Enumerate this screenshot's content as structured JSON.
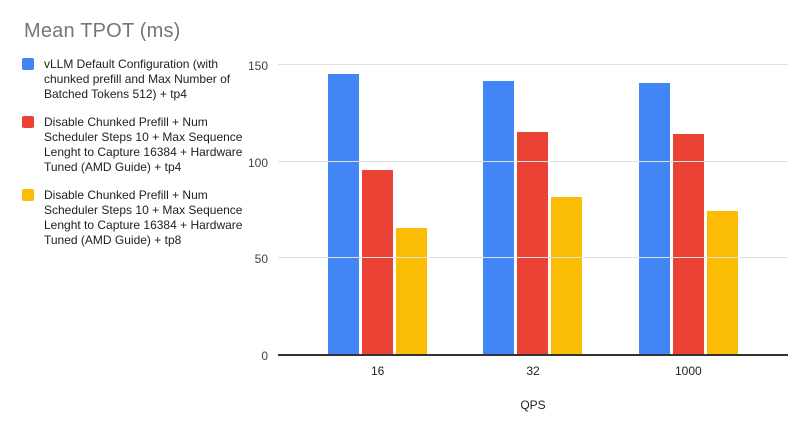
{
  "title": "Mean TPOT (ms)",
  "legend": {
    "items": [
      {
        "label": "vLLM Default Configuration (with chunked prefill and Max Number of Batched Tokens 512) + tp4",
        "color": "#4285F4"
      },
      {
        "label": "Disable Chunked Prefill + Num Scheduler Steps 10 + Max Sequence Lenght to Capture 16384 + Hardware Tuned (AMD Guide) + tp4",
        "color": "#EA4335"
      },
      {
        "label": "Disable Chunked Prefill + Num Scheduler Steps 10 + Max Sequence Lenght to Capture 16384 + Hardware Tuned (AMD Guide) + tp8",
        "color": "#FBBC04"
      }
    ]
  },
  "chart_data": {
    "type": "bar",
    "title": "Mean TPOT (ms)",
    "categories": [
      "16",
      "32",
      "1000"
    ],
    "series": [
      {
        "name": "vLLM Default Configuration (with chunked prefill and Max Number of Batched Tokens 512) + tp4",
        "color": "#4285F4",
        "values": [
          145,
          141,
          140
        ]
      },
      {
        "name": "Disable Chunked Prefill + Num Scheduler Steps 10 + Max Sequence Lenght to Capture 16384 + Hardware Tuned (AMD Guide) + tp4",
        "color": "#EA4335",
        "values": [
          95,
          115,
          114
        ]
      },
      {
        "name": "Disable Chunked Prefill + Num Scheduler Steps 10 + Max Sequence Lenght to Capture 16384 + Hardware Tuned (AMD Guide) + tp8",
        "color": "#FBBC04",
        "values": [
          65,
          81,
          74
        ]
      }
    ],
    "xlabel": "QPS",
    "ylabel": "",
    "ylim": [
      0,
      150
    ],
    "yticks": [
      0,
      50,
      100,
      150
    ],
    "grid": true,
    "legend_position": "left"
  },
  "colors": {
    "title_text": "#757575",
    "legend_text": "#212121",
    "axis_text": "#424242",
    "gridline": "#e0e0e0",
    "baseline": "#333333",
    "background": "#ffffff"
  }
}
